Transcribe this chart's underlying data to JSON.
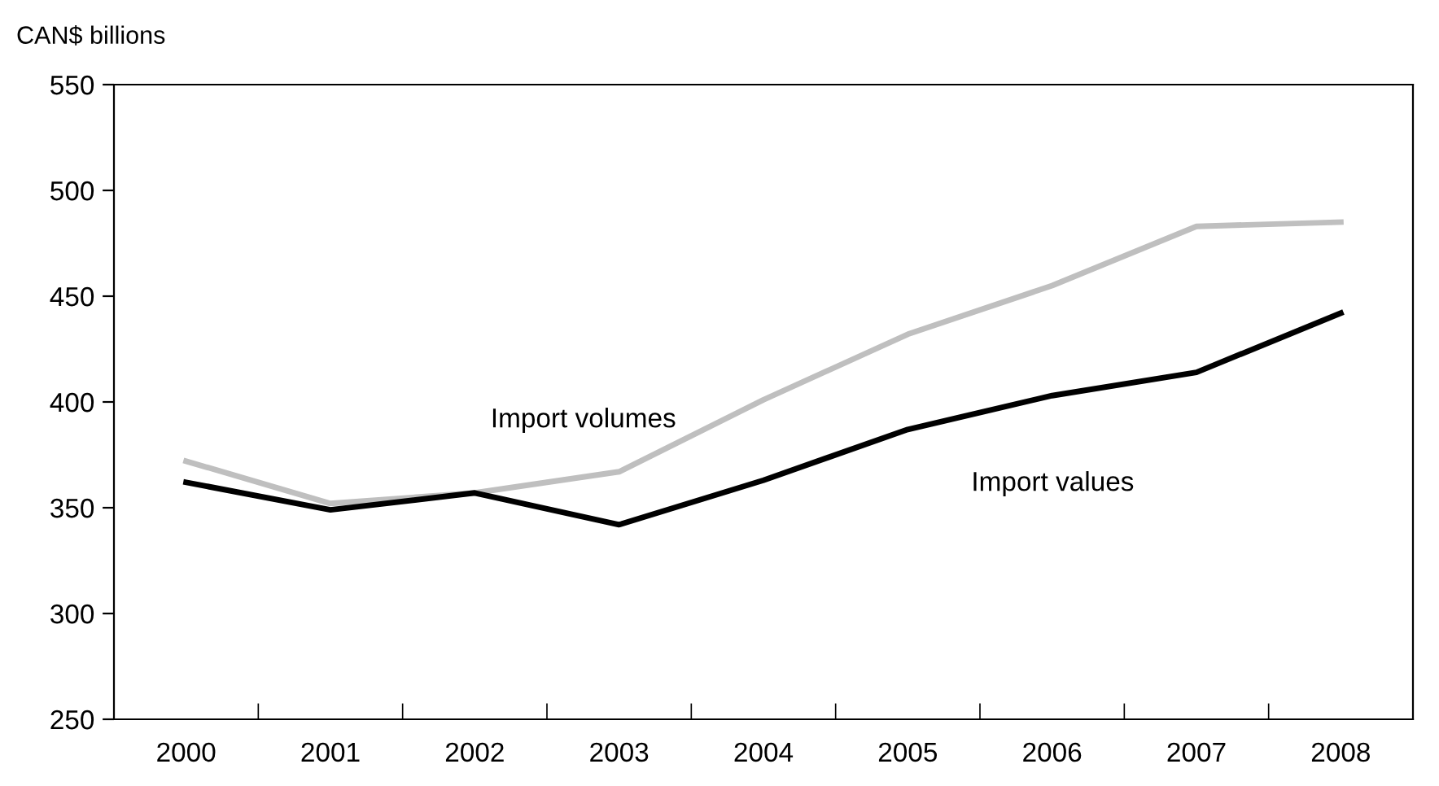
{
  "chart_data": {
    "type": "line",
    "ylabel": "CAN$ billions",
    "categories": [
      "2000",
      "2001",
      "2002",
      "2003",
      "2004",
      "2005",
      "2006",
      "2007",
      "2008"
    ],
    "series": [
      {
        "name": "Import volumes",
        "color": "#bfbfbf",
        "values": [
          372,
          352,
          357,
          367,
          401,
          432,
          455,
          483,
          485
        ]
      },
      {
        "name": "Import values",
        "color": "#000000",
        "values": [
          362,
          349,
          357,
          342,
          363,
          387,
          403,
          414,
          442
        ]
      }
    ],
    "ylim": [
      250,
      550
    ],
    "yticks": [
      250,
      300,
      350,
      400,
      450,
      500,
      550
    ],
    "grid": false,
    "legend": false,
    "marker": "none",
    "line_style": "solid"
  }
}
